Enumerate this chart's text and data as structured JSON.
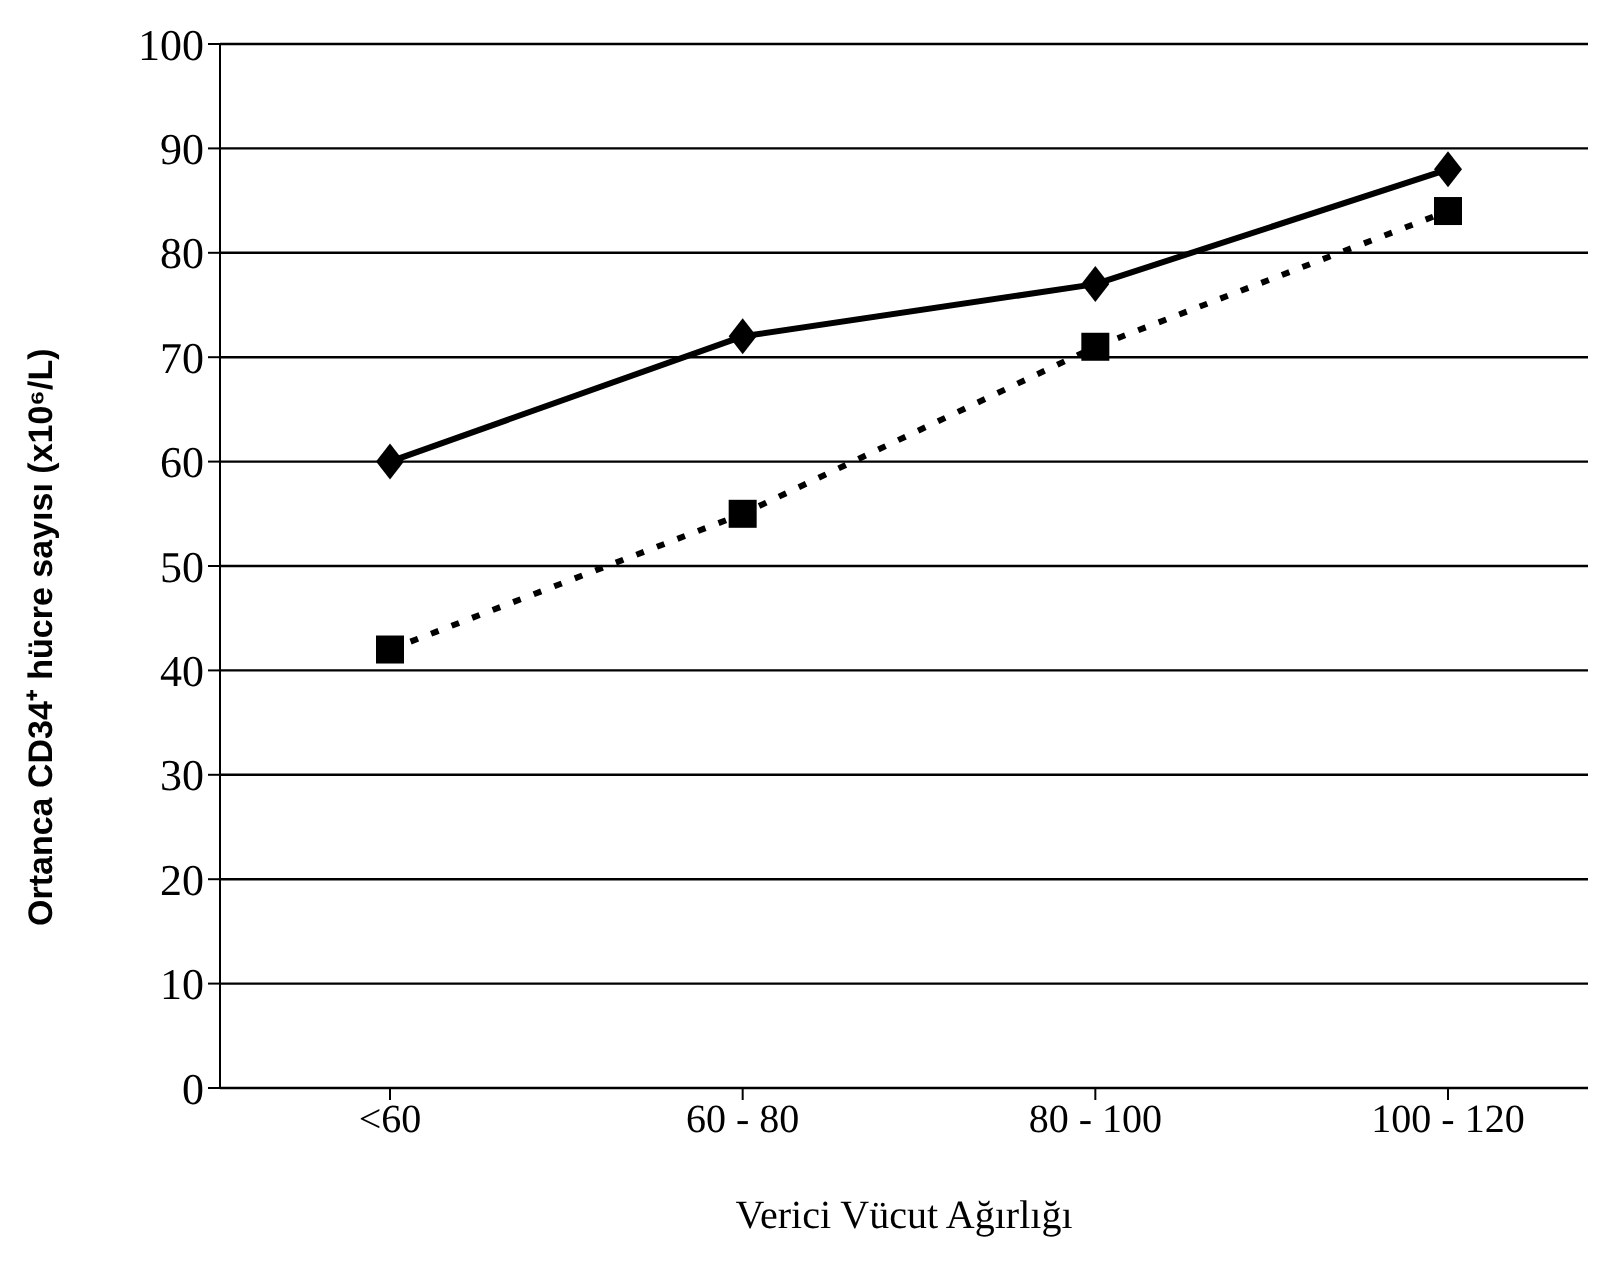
{
  "chart_data": {
    "type": "line",
    "xlabel": "Verici Vücut Ağırlığı",
    "ylabel": "Ortanca CD34⁺ hücre sayısı (x10⁶/L)",
    "categories": [
      "<60",
      "60 - 80",
      "80 - 100",
      "100 - 120"
    ],
    "series": [
      {
        "color": "#000000",
        "values": [
          60,
          72,
          77,
          88
        ],
        "marker": "diamond",
        "line_style": "solid"
      },
      {
        "color": "#000000",
        "values": [
          42,
          55,
          71,
          84
        ],
        "marker": "square",
        "line_style": "dotted"
      }
    ],
    "ylim": [
      0,
      100
    ],
    "yticks": [
      0,
      10,
      20,
      30,
      40,
      50,
      60,
      70,
      80,
      90,
      100
    ],
    "grid": "y"
  }
}
